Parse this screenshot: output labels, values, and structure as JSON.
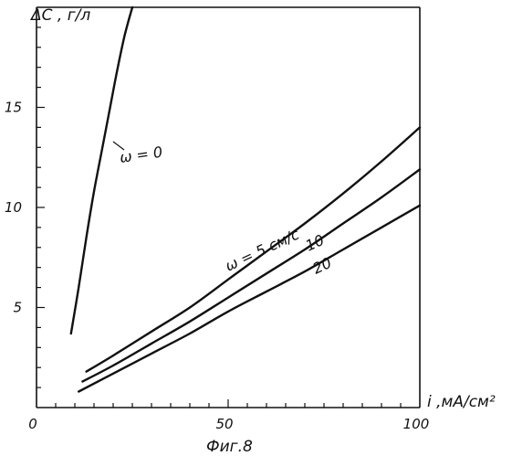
{
  "chart_data": {
    "type": "line",
    "title": "",
    "ylabel": "ΔС , г/л",
    "xlabel": "i ,мА/см²",
    "caption": "Фиг.8",
    "xlim": [
      0,
      100
    ],
    "ylim": [
      0,
      20
    ],
    "x_ticks": [
      0,
      50,
      100
    ],
    "y_ticks": [
      5,
      10,
      15
    ],
    "grid": false,
    "legend": "none",
    "series": [
      {
        "name": "ω = 0",
        "points": [
          [
            9,
            3.7
          ],
          [
            11,
            6
          ],
          [
            13,
            8.5
          ],
          [
            15,
            10.8
          ],
          [
            17,
            12.8
          ],
          [
            19,
            14.8
          ],
          [
            21,
            16.8
          ],
          [
            23,
            18.6
          ],
          [
            25,
            20
          ]
        ]
      },
      {
        "name": "ω = 5 см/с",
        "points": [
          [
            13,
            1.8
          ],
          [
            20,
            2.6
          ],
          [
            30,
            3.8
          ],
          [
            40,
            5.0
          ],
          [
            50,
            6.4
          ],
          [
            60,
            7.8
          ],
          [
            70,
            9.2
          ],
          [
            80,
            10.7
          ],
          [
            90,
            12.3
          ],
          [
            100,
            14.0
          ]
        ]
      },
      {
        "name": "10",
        "points": [
          [
            12,
            1.3
          ],
          [
            20,
            2.1
          ],
          [
            30,
            3.2
          ],
          [
            40,
            4.3
          ],
          [
            50,
            5.5
          ],
          [
            60,
            6.7
          ],
          [
            70,
            7.9
          ],
          [
            80,
            9.2
          ],
          [
            90,
            10.5
          ],
          [
            100,
            11.9
          ]
        ]
      },
      {
        "name": "20",
        "points": [
          [
            11,
            0.8
          ],
          [
            20,
            1.7
          ],
          [
            30,
            2.7
          ],
          [
            40,
            3.7
          ],
          [
            50,
            4.8
          ],
          [
            60,
            5.8
          ],
          [
            70,
            6.8
          ],
          [
            80,
            7.9
          ],
          [
            90,
            9.0
          ],
          [
            100,
            10.1
          ]
        ]
      }
    ]
  }
}
